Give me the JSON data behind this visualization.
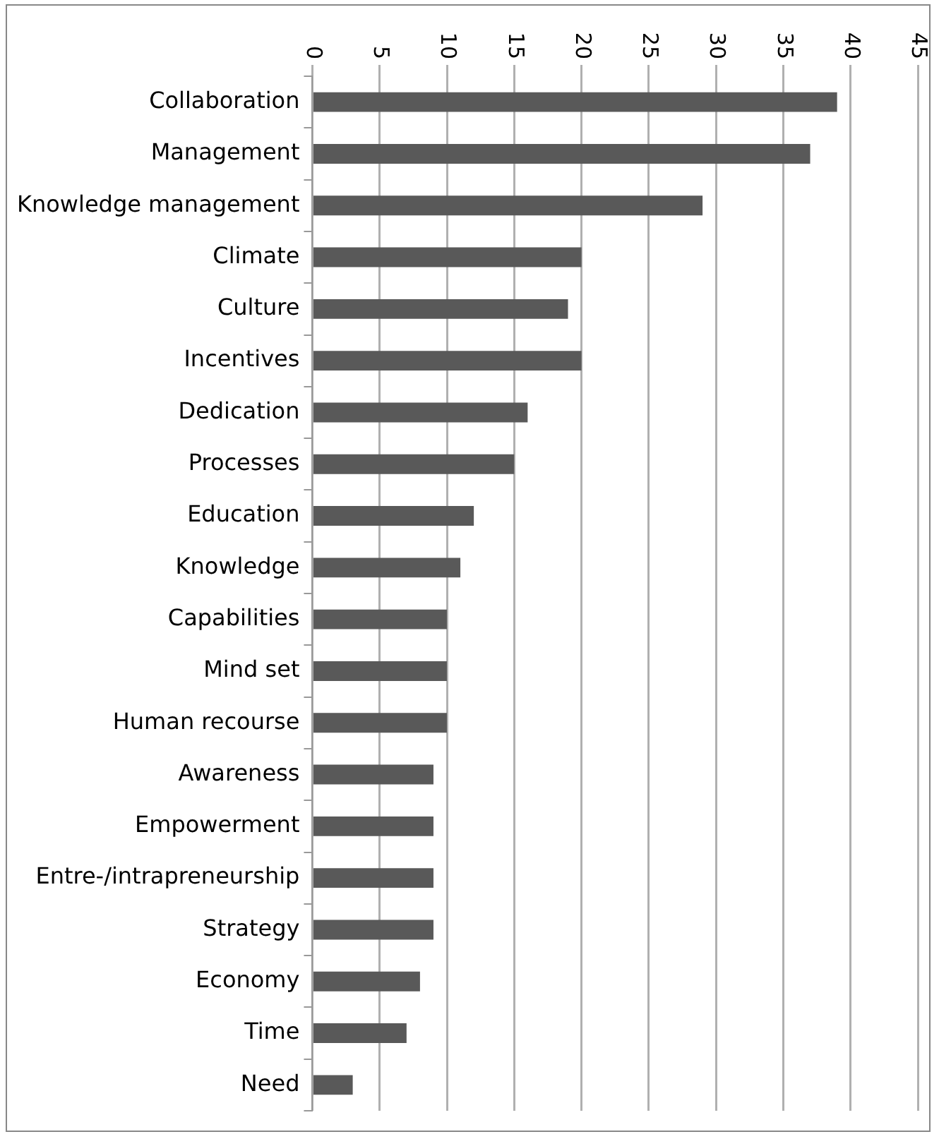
{
  "chart_data": {
    "type": "bar",
    "orientation": "horizontal",
    "categories": [
      "Collaboration",
      "Management",
      "Knowledge management",
      "Climate",
      "Culture",
      "Incentives",
      "Dedication",
      "Processes",
      "Education",
      "Knowledge",
      "Capabilities",
      "Mind set",
      "Human recourse",
      "Awareness",
      "Empowerment",
      "Entre-/intrapreneurship",
      "Strategy",
      "Economy",
      "Time",
      "Need"
    ],
    "values": [
      39,
      37,
      29,
      20,
      19,
      20,
      16,
      15,
      12,
      11,
      10,
      10,
      10,
      9,
      9,
      9,
      9,
      8,
      7,
      3
    ],
    "color": "#595959",
    "xlim": [
      0,
      45
    ],
    "xticks": [
      0,
      5,
      10,
      15,
      20,
      25,
      30,
      35,
      40,
      45
    ],
    "grid": "x",
    "legend": false
  }
}
